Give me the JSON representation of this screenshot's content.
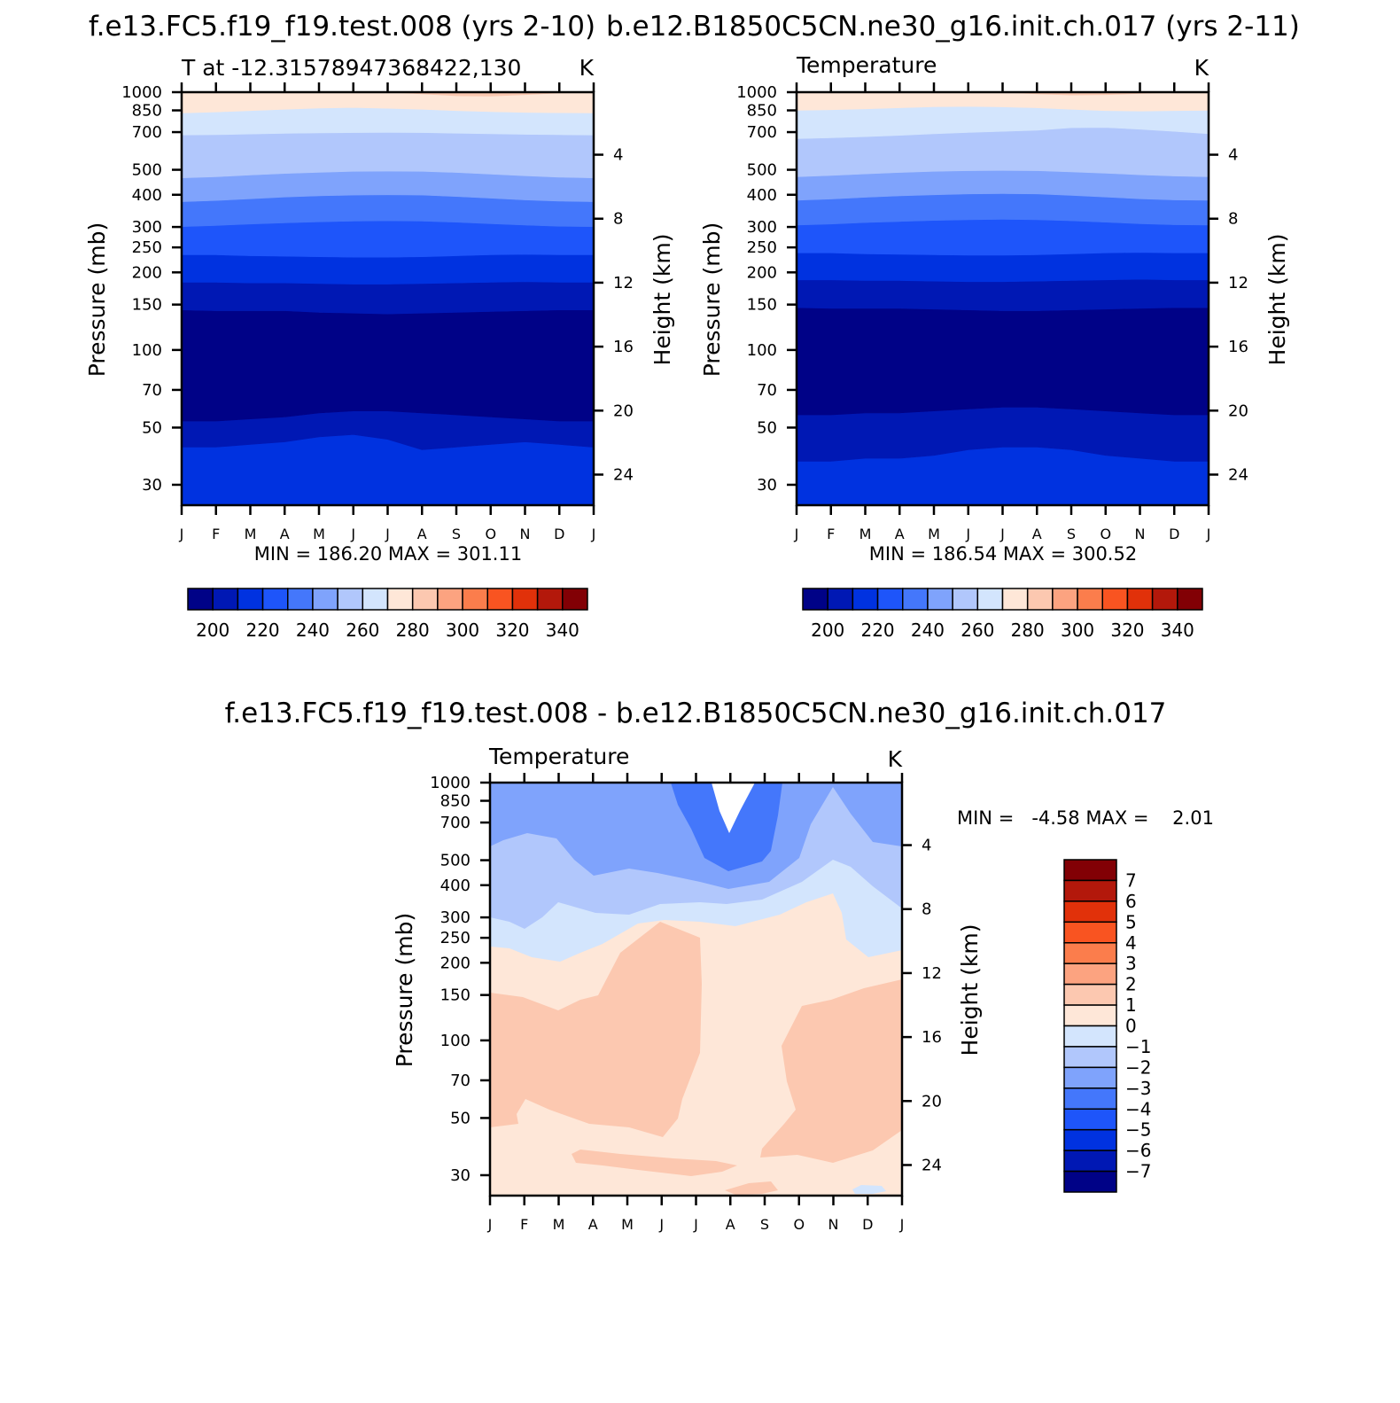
{
  "figure": {
    "left_title": "f.e13.FC5.f19_f19.test.008 (yrs 2-10)",
    "right_title": "b.e12.B1850C5CN.ne30_g16.init.ch.017 (yrs 2-11)",
    "diff_title": "f.e13.FC5.f19_f19.test.008 - b.e12.B1850C5CN.ne30_g16.init.ch.017"
  },
  "chart_data": [
    {
      "type": "heatmap",
      "panel": "test",
      "subtitle_left": "T at -12.31578947368422,130",
      "subtitle_right": "K",
      "xlabel": "",
      "ylabel": "Pressure (mb)",
      "ylabel_right": "Height (km)",
      "x_categories": [
        "J",
        "F",
        "M",
        "A",
        "M",
        "J",
        "J",
        "A",
        "S",
        "O",
        "N",
        "D",
        "J"
      ],
      "pressure_ticks": [
        30,
        50,
        70,
        100,
        150,
        200,
        250,
        300,
        400,
        500,
        700,
        850,
        1000
      ],
      "height_ticks": [
        24,
        20,
        16,
        12,
        8,
        4
      ],
      "ylim_mb": [
        1000,
        25
      ],
      "contour_levels": [
        200,
        210,
        220,
        230,
        240,
        250,
        260,
        270,
        280,
        290,
        300,
        310,
        320,
        330,
        340
      ],
      "x": [
        0,
        1,
        2,
        3,
        4,
        5,
        6,
        7,
        8,
        9,
        10,
        11,
        12
      ],
      "contour_lines_pressure_mb": [
        {
          "level": 200,
          "values": [
            42,
            42,
            43,
            44,
            46,
            47,
            45,
            41,
            42,
            43,
            44,
            43,
            42
          ]
        },
        {
          "level": 210,
          "values": [
            53,
            53,
            54,
            55,
            57,
            58,
            58,
            57,
            56,
            55,
            54,
            53,
            53
          ]
        },
        {
          "level": 220,
          "values": [
            143,
            142,
            142,
            142,
            140,
            139,
            138,
            139,
            140,
            141,
            142,
            143,
            143
          ]
        },
        {
          "level": 230,
          "values": [
            183,
            183,
            182,
            182,
            181,
            180,
            180,
            181,
            182,
            183,
            184,
            183,
            183
          ]
        },
        {
          "level": 240,
          "values": [
            234,
            234,
            232,
            231,
            230,
            229,
            229,
            230,
            232,
            234,
            235,
            234,
            234
          ]
        },
        {
          "level": 250,
          "values": [
            301,
            304,
            308,
            311,
            314,
            316,
            317,
            316,
            313,
            309,
            305,
            302,
            301
          ]
        },
        {
          "level": 260,
          "values": [
            376,
            380,
            386,
            392,
            396,
            399,
            400,
            399,
            394,
            388,
            382,
            378,
            376
          ]
        },
        {
          "level": 270,
          "values": [
            465,
            470,
            477,
            484,
            489,
            493,
            494,
            493,
            488,
            481,
            474,
            468,
            465
          ]
        },
        {
          "level": 280,
          "values": [
            682,
            684,
            688,
            692,
            695,
            697,
            698,
            697,
            693,
            690,
            686,
            684,
            682
          ]
        },
        {
          "level": 290,
          "values": [
            830,
            838,
            848,
            858,
            868,
            872,
            866,
            858,
            848,
            840,
            835,
            832,
            830
          ]
        },
        {
          "level": 300,
          "values": [
            1001,
            1001,
            1001,
            1001,
            1001,
            1001,
            1001,
            985,
            968,
            965,
            978,
            992,
            1001
          ]
        }
      ],
      "min": "186.20",
      "max": "301.11",
      "stats_label": "MIN =  186.20 MAX =  301.11",
      "colorbar_labels": [
        "200",
        "220",
        "240",
        "260",
        "280",
        "300",
        "320",
        "340"
      ]
    },
    {
      "type": "heatmap",
      "panel": "control",
      "subtitle_left": "Temperature",
      "subtitle_right": "K",
      "xlabel": "",
      "ylabel": "Pressure (mb)",
      "ylabel_right": "Height (km)",
      "x_categories": [
        "J",
        "F",
        "M",
        "A",
        "M",
        "J",
        "J",
        "A",
        "S",
        "O",
        "N",
        "D",
        "J"
      ],
      "pressure_ticks": [
        30,
        50,
        70,
        100,
        150,
        200,
        250,
        300,
        400,
        500,
        700,
        850,
        1000
      ],
      "height_ticks": [
        24,
        20,
        16,
        12,
        8,
        4
      ],
      "ylim_mb": [
        1000,
        25
      ],
      "contour_levels": [
        200,
        210,
        220,
        230,
        240,
        250,
        260,
        270,
        280,
        290,
        300,
        310,
        320,
        330,
        340
      ],
      "x": [
        0,
        1,
        2,
        3,
        4,
        5,
        6,
        7,
        8,
        9,
        10,
        11,
        12
      ],
      "contour_lines_pressure_mb": [
        {
          "level": 200,
          "values": [
            37,
            37,
            38,
            38,
            39,
            41,
            42,
            42,
            41,
            39,
            38,
            37,
            37
          ]
        },
        {
          "level": 210,
          "values": [
            56,
            56,
            57,
            57,
            58,
            59,
            60,
            60,
            59,
            58,
            57,
            56,
            56
          ]
        },
        {
          "level": 220,
          "values": [
            146,
            145,
            145,
            145,
            144,
            143,
            142,
            142,
            143,
            144,
            145,
            146,
            146
          ]
        },
        {
          "level": 230,
          "values": [
            187,
            187,
            186,
            186,
            185,
            184,
            184,
            185,
            186,
            187,
            188,
            187,
            187
          ]
        },
        {
          "level": 240,
          "values": [
            238,
            238,
            236,
            235,
            234,
            233,
            233,
            234,
            236,
            238,
            239,
            238,
            238
          ]
        },
        {
          "level": 250,
          "values": [
            305,
            308,
            312,
            315,
            318,
            320,
            321,
            320,
            317,
            313,
            309,
            306,
            305
          ]
        },
        {
          "level": 260,
          "values": [
            381,
            385,
            391,
            396,
            400,
            403,
            404,
            403,
            398,
            392,
            386,
            382,
            381
          ]
        },
        {
          "level": 270,
          "values": [
            470,
            475,
            482,
            488,
            493,
            496,
            497,
            496,
            491,
            485,
            478,
            473,
            470
          ]
        },
        {
          "level": 280,
          "values": [
            660,
            665,
            672,
            680,
            690,
            698,
            705,
            712,
            728,
            730,
            718,
            705,
            690
          ]
        },
        {
          "level": 290,
          "values": [
            850,
            855,
            862,
            870,
            878,
            880,
            877,
            870,
            858,
            848,
            845,
            848,
            850
          ]
        },
        {
          "level": 300,
          "values": [
            1001,
            1001,
            1001,
            1001,
            1001,
            1001,
            1001,
            985,
            975,
            978,
            988,
            998,
            1001
          ]
        }
      ],
      "min": "186.54",
      "max": "300.52",
      "stats_label": "MIN =  186.54 MAX =  300.52",
      "colorbar_labels": [
        "200",
        "220",
        "240",
        "260",
        "280",
        "300",
        "320",
        "340"
      ]
    },
    {
      "type": "heatmap",
      "panel": "difference",
      "subtitle_left": "Temperature",
      "subtitle_right": "K",
      "xlabel": "",
      "ylabel": "Pressure (mb)",
      "ylabel_right": "Height (km)",
      "x_categories": [
        "J",
        "F",
        "M",
        "A",
        "M",
        "J",
        "J",
        "A",
        "S",
        "O",
        "N",
        "D",
        "J"
      ],
      "pressure_ticks": [
        30,
        50,
        70,
        100,
        150,
        200,
        250,
        300,
        400,
        500,
        700,
        850,
        1000
      ],
      "height_ticks": [
        24,
        20,
        16,
        12,
        8,
        4
      ],
      "ylim_mb": [
        1000,
        25
      ],
      "contour_levels": [
        -7,
        -6,
        -5,
        -4,
        -3,
        -2,
        -1,
        0,
        1,
        2,
        3,
        4,
        5,
        6,
        7
      ],
      "regions": [
        {
          "level_band": [
            -3,
            -2
          ],
          "description_points": []
        }
      ],
      "min": "-4.58",
      "max": "2.01",
      "stats_label": "MIN =   -4.58 MAX =    2.01",
      "colorbar_labels": [
        "7",
        "6",
        "5",
        "4",
        "3",
        "2",
        "1",
        "0",
        "-1",
        "-2",
        "-3",
        "-4",
        "-5",
        "-6",
        "-7"
      ]
    }
  ],
  "colors": {
    "seq": [
      "#000287",
      "#0018b4",
      "#0032e0",
      "#1e55fa",
      "#4477fb",
      "#7fa3fc",
      "#b1c7fc",
      "#d3e5fd",
      "#fee7d8",
      "#fcc8b0",
      "#fca380",
      "#fb7d4c",
      "#f95421",
      "#e1310a",
      "#b3180b",
      "#820005"
    ],
    "diff_bottom_to_top": [
      "#000287",
      "#0018b4",
      "#0032e0",
      "#1e55fa",
      "#4477fb",
      "#7fa3fc",
      "#b1c7fc",
      "#d3e5fd",
      "#fee7d8",
      "#fcc8b0",
      "#fca380",
      "#fb7d4c",
      "#f95421",
      "#e1310a",
      "#b3180b",
      "#820005"
    ]
  }
}
